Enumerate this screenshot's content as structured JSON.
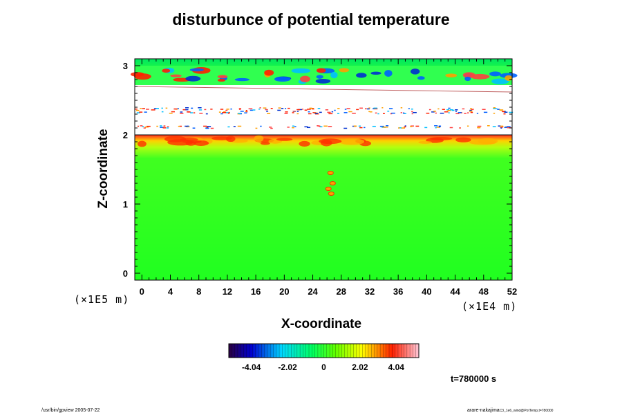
{
  "chart_data": {
    "type": "heatmap",
    "title": "disturbunce of potential temperature",
    "xlabel": "X-coordinate",
    "ylabel": "Z-coordinate",
    "x_unit": "(×1E4 m)",
    "y_unit": "(×1E5 m)",
    "xlim": [
      -1,
      52
    ],
    "ylim": [
      -0.1,
      3.1
    ],
    "x_ticks": [
      "0",
      "4",
      "8",
      "12",
      "16",
      "20",
      "24",
      "28",
      "32",
      "36",
      "40",
      "44",
      "48",
      "52"
    ],
    "y_ticks": [
      "0",
      "1",
      "2",
      "3"
    ],
    "colorbar": {
      "range": [
        -5.3,
        5.3
      ],
      "ticks": [
        "-4.04",
        "-2.02",
        "0",
        "2.02",
        "4.04"
      ],
      "colormap": "rainbow (purple-blue-cyan-green-yellow-red-pink)"
    },
    "regions": [
      {
        "z_range": [
          0,
          1.7
        ],
        "value_approx": 0,
        "description": "near-zero disturbance (green)"
      },
      {
        "z_range": [
          1.8,
          2.0
        ],
        "value_approx": 3.5,
        "description": "positive disturbance band (yellow-red)"
      },
      {
        "z_range": [
          2.0,
          2.75
        ],
        "value_approx": null,
        "description": "out of range (blank)"
      },
      {
        "z_range": [
          2.75,
          3.0
        ],
        "value_approx": 0,
        "description": "mixed positive and negative disturbances"
      }
    ]
  },
  "annotations": {
    "time": "t=780000 s",
    "footer_left": "/usr/bin/gpview 2005-07-22",
    "footer_right": "arare-nakajima",
    "footer_right_small": "C3_1e6_wind@PotTemp,t=780000"
  }
}
